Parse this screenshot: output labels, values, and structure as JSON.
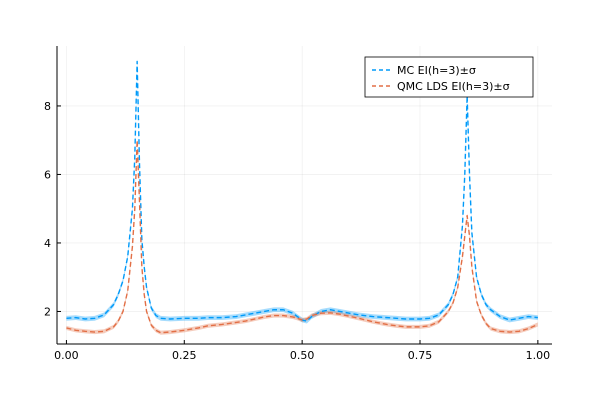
{
  "chart_data": {
    "type": "line",
    "title": "",
    "xlabel": "",
    "ylabel": "",
    "xlim": [
      -0.02,
      1.03
    ],
    "ylim": [
      1.05,
      9.75
    ],
    "xticks": [
      0.0,
      0.25,
      0.5,
      0.75,
      1.0
    ],
    "xtick_labels": [
      "0.00",
      "0.25",
      "0.50",
      "0.75",
      "1.00"
    ],
    "yticks": [
      2,
      4,
      6,
      8
    ],
    "ytick_labels": [
      "2",
      "4",
      "6",
      "8"
    ],
    "grid": true,
    "legend_position": "top-right",
    "series": [
      {
        "name": "MC EI(h=3)±σ",
        "color": "#009af9",
        "style": "dashed",
        "band": 0.07,
        "x": [
          0.0,
          0.02,
          0.04,
          0.06,
          0.08,
          0.1,
          0.11,
          0.12,
          0.13,
          0.14,
          0.145,
          0.15,
          0.155,
          0.16,
          0.165,
          0.17,
          0.18,
          0.19,
          0.2,
          0.22,
          0.25,
          0.28,
          0.3,
          0.33,
          0.36,
          0.38,
          0.4,
          0.42,
          0.44,
          0.46,
          0.48,
          0.49,
          0.5,
          0.51,
          0.52,
          0.54,
          0.56,
          0.58,
          0.6,
          0.62,
          0.65,
          0.68,
          0.7,
          0.72,
          0.75,
          0.77,
          0.79,
          0.81,
          0.82,
          0.83,
          0.84,
          0.845,
          0.85,
          0.855,
          0.86,
          0.87,
          0.88,
          0.89,
          0.9,
          0.92,
          0.94,
          0.96,
          0.98,
          1.0
        ],
        "y": [
          1.8,
          1.82,
          1.78,
          1.8,
          1.9,
          2.2,
          2.5,
          2.9,
          3.6,
          5.0,
          6.5,
          9.3,
          6.3,
          4.1,
          3.3,
          2.7,
          2.1,
          1.88,
          1.8,
          1.78,
          1.8,
          1.8,
          1.82,
          1.82,
          1.85,
          1.9,
          1.95,
          2.0,
          2.05,
          2.05,
          1.95,
          1.85,
          1.75,
          1.72,
          1.85,
          2.0,
          2.05,
          2.0,
          1.95,
          1.9,
          1.85,
          1.82,
          1.8,
          1.78,
          1.78,
          1.8,
          1.9,
          2.2,
          2.5,
          3.0,
          4.5,
          6.0,
          8.3,
          6.0,
          4.3,
          3.0,
          2.5,
          2.2,
          2.05,
          1.85,
          1.75,
          1.8,
          1.85,
          1.82
        ]
      },
      {
        "name": "QMC LDS EI(h=3)±σ",
        "color": "#e26f46",
        "style": "dashed",
        "band": 0.06,
        "x": [
          0.0,
          0.02,
          0.04,
          0.06,
          0.08,
          0.1,
          0.11,
          0.12,
          0.13,
          0.14,
          0.145,
          0.15,
          0.155,
          0.16,
          0.165,
          0.17,
          0.18,
          0.19,
          0.2,
          0.22,
          0.25,
          0.28,
          0.3,
          0.33,
          0.36,
          0.38,
          0.4,
          0.42,
          0.44,
          0.46,
          0.48,
          0.49,
          0.5,
          0.51,
          0.52,
          0.54,
          0.56,
          0.58,
          0.6,
          0.62,
          0.65,
          0.68,
          0.7,
          0.72,
          0.75,
          0.77,
          0.79,
          0.81,
          0.82,
          0.83,
          0.84,
          0.845,
          0.85,
          0.855,
          0.86,
          0.87,
          0.88,
          0.89,
          0.9,
          0.92,
          0.94,
          0.96,
          0.98,
          1.0
        ],
        "y": [
          1.52,
          1.45,
          1.42,
          1.4,
          1.42,
          1.55,
          1.72,
          2.0,
          2.6,
          3.9,
          5.0,
          7.0,
          5.2,
          3.3,
          2.5,
          2.0,
          1.6,
          1.45,
          1.38,
          1.4,
          1.45,
          1.52,
          1.58,
          1.62,
          1.68,
          1.72,
          1.78,
          1.84,
          1.88,
          1.88,
          1.84,
          1.8,
          1.75,
          1.78,
          1.88,
          1.95,
          1.96,
          1.92,
          1.86,
          1.8,
          1.7,
          1.62,
          1.58,
          1.55,
          1.55,
          1.58,
          1.7,
          2.0,
          2.25,
          2.7,
          3.6,
          4.2,
          4.8,
          4.2,
          3.3,
          2.3,
          1.9,
          1.65,
          1.5,
          1.42,
          1.4,
          1.42,
          1.5,
          1.62
        ]
      }
    ]
  }
}
